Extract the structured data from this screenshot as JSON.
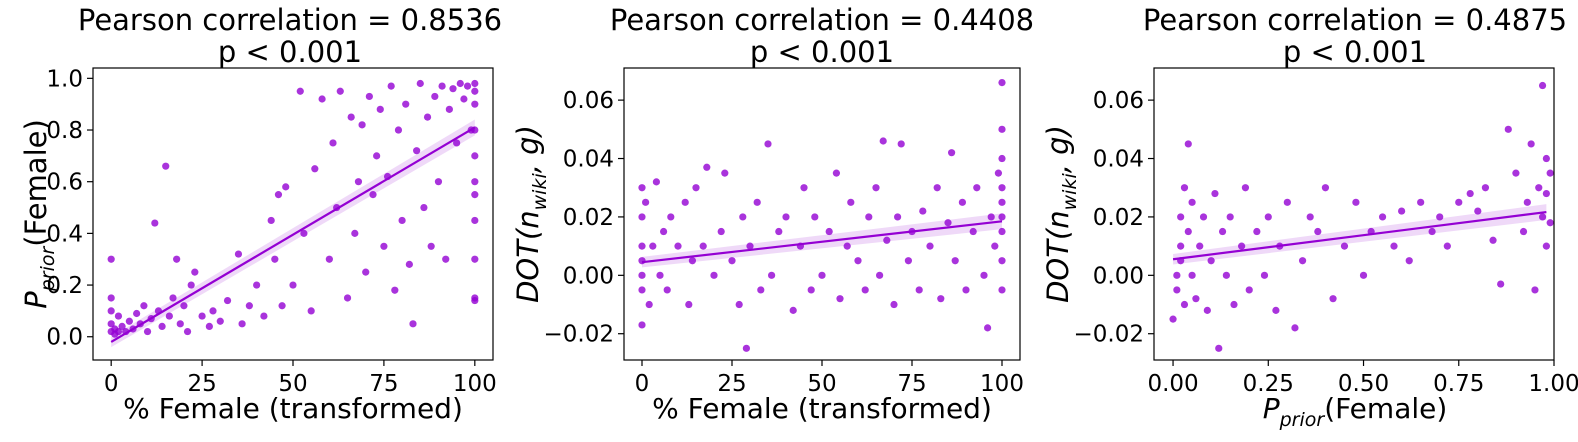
{
  "accent_color": "#9400D3",
  "chart_data": [
    {
      "type": "scatter",
      "title": "Pearson correlation = 0.8536",
      "subtitle": "p < 0.001",
      "xlabel": "% Female (transformed)",
      "ylabel_main": "P",
      "ylabel_sub": "prior",
      "ylabel_rest": "(Female)",
      "xlim": [
        -5,
        105
      ],
      "ylim": [
        -0.09,
        1.04
      ],
      "xticks": [
        0,
        25,
        50,
        75,
        100
      ],
      "xtick_labels": [
        "0",
        "25",
        "50",
        "75",
        "100"
      ],
      "yticks": [
        0.0,
        0.2,
        0.4,
        0.6,
        0.8,
        1.0
      ],
      "ytick_labels": [
        "0.0",
        "0.2",
        "0.4",
        "0.6",
        "0.8",
        "1.0"
      ],
      "regression": {
        "slope": 0.0083,
        "intercept": -0.02,
        "x_range": [
          0,
          100
        ]
      },
      "points": [
        [
          0,
          0.02
        ],
        [
          0,
          0.05
        ],
        [
          0,
          0.1
        ],
        [
          0,
          0.15
        ],
        [
          0,
          0.3
        ],
        [
          1,
          0.01
        ],
        [
          1,
          0.03
        ],
        [
          2,
          0.02
        ],
        [
          2,
          0.08
        ],
        [
          3,
          0.04
        ],
        [
          4,
          0.02
        ],
        [
          5,
          0.06
        ],
        [
          6,
          0.03
        ],
        [
          7,
          0.09
        ],
        [
          8,
          0.05
        ],
        [
          9,
          0.12
        ],
        [
          10,
          0.02
        ],
        [
          11,
          0.07
        ],
        [
          12,
          0.44
        ],
        [
          13,
          0.1
        ],
        [
          14,
          0.04
        ],
        [
          15,
          0.66
        ],
        [
          16,
          0.08
        ],
        [
          17,
          0.15
        ],
        [
          18,
          0.3
        ],
        [
          19,
          0.05
        ],
        [
          20,
          0.12
        ],
        [
          21,
          0.02
        ],
        [
          22,
          0.2
        ],
        [
          23,
          0.25
        ],
        [
          25,
          0.08
        ],
        [
          27,
          0.04
        ],
        [
          28,
          0.1
        ],
        [
          30,
          0.06
        ],
        [
          32,
          0.14
        ],
        [
          35,
          0.32
        ],
        [
          36,
          0.05
        ],
        [
          38,
          0.12
        ],
        [
          40,
          0.2
        ],
        [
          42,
          0.08
        ],
        [
          44,
          0.45
        ],
        [
          45,
          0.3
        ],
        [
          46,
          0.55
        ],
        [
          47,
          0.12
        ],
        [
          48,
          0.58
        ],
        [
          50,
          0.2
        ],
        [
          52,
          0.95
        ],
        [
          53,
          0.4
        ],
        [
          55,
          0.1
        ],
        [
          56,
          0.65
        ],
        [
          58,
          0.92
        ],
        [
          60,
          0.3
        ],
        [
          61,
          0.75
        ],
        [
          62,
          0.5
        ],
        [
          63,
          0.95
        ],
        [
          65,
          0.15
        ],
        [
          66,
          0.85
        ],
        [
          67,
          0.4
        ],
        [
          68,
          0.6
        ],
        [
          69,
          0.82
        ],
        [
          70,
          0.25
        ],
        [
          71,
          0.93
        ],
        [
          72,
          0.55
        ],
        [
          73,
          0.7
        ],
        [
          74,
          0.88
        ],
        [
          75,
          0.35
        ],
        [
          76,
          0.62
        ],
        [
          77,
          0.97
        ],
        [
          78,
          0.18
        ],
        [
          79,
          0.8
        ],
        [
          80,
          0.45
        ],
        [
          81,
          0.9
        ],
        [
          82,
          0.28
        ],
        [
          83,
          0.05
        ],
        [
          84,
          0.72
        ],
        [
          85,
          0.98
        ],
        [
          86,
          0.5
        ],
        [
          87,
          0.85
        ],
        [
          88,
          0.35
        ],
        [
          89,
          0.93
        ],
        [
          90,
          0.6
        ],
        [
          91,
          0.97
        ],
        [
          92,
          0.3
        ],
        [
          93,
          0.88
        ],
        [
          94,
          0.96
        ],
        [
          95,
          0.75
        ],
        [
          96,
          0.98
        ],
        [
          97,
          0.92
        ],
        [
          98,
          0.97
        ],
        [
          99,
          0.8
        ],
        [
          100,
          0.15
        ],
        [
          100,
          0.14
        ],
        [
          100,
          0.3
        ],
        [
          100,
          0.45
        ],
        [
          100,
          0.6
        ],
        [
          100,
          0.7
        ],
        [
          100,
          0.8
        ],
        [
          100,
          0.9
        ],
        [
          100,
          0.95
        ],
        [
          100,
          0.98
        ],
        [
          100,
          0.55
        ]
      ]
    },
    {
      "type": "scatter",
      "title": "Pearson correlation = 0.4408",
      "subtitle": "p < 0.001",
      "xlabel": "% Female (transformed)",
      "ylabel_main": "DOT(n",
      "ylabel_sub": "wiki",
      "ylabel_rest": ", g)",
      "xlim": [
        -5,
        105
      ],
      "ylim": [
        -0.029,
        0.071
      ],
      "xticks": [
        0,
        25,
        50,
        75,
        100
      ],
      "xtick_labels": [
        "0",
        "25",
        "50",
        "75",
        "100"
      ],
      "yticks": [
        -0.02,
        0.0,
        0.02,
        0.04,
        0.06
      ],
      "ytick_labels": [
        "−0.02",
        "0.00",
        "0.02",
        "0.04",
        "0.06"
      ],
      "regression": {
        "slope": 0.00014,
        "intercept": 0.0045,
        "x_range": [
          0,
          100
        ]
      },
      "points": [
        [
          0,
          -0.017
        ],
        [
          0,
          -0.005
        ],
        [
          0,
          0.0
        ],
        [
          0,
          0.005
        ],
        [
          0,
          0.01
        ],
        [
          0,
          0.02
        ],
        [
          0,
          0.03
        ],
        [
          1,
          0.025
        ],
        [
          2,
          -0.01
        ],
        [
          3,
          0.01
        ],
        [
          4,
          0.032
        ],
        [
          5,
          0.0
        ],
        [
          6,
          0.015
        ],
        [
          7,
          -0.005
        ],
        [
          8,
          0.02
        ],
        [
          10,
          0.01
        ],
        [
          12,
          0.025
        ],
        [
          13,
          -0.01
        ],
        [
          14,
          0.005
        ],
        [
          15,
          0.03
        ],
        [
          17,
          0.01
        ],
        [
          18,
          0.037
        ],
        [
          20,
          0.0
        ],
        [
          22,
          0.015
        ],
        [
          23,
          0.035
        ],
        [
          25,
          0.005
        ],
        [
          27,
          -0.01
        ],
        [
          28,
          0.02
        ],
        [
          29,
          -0.025
        ],
        [
          30,
          0.01
        ],
        [
          32,
          0.025
        ],
        [
          33,
          -0.005
        ],
        [
          35,
          0.045
        ],
        [
          36,
          0.0
        ],
        [
          38,
          0.015
        ],
        [
          40,
          0.02
        ],
        [
          42,
          -0.012
        ],
        [
          44,
          0.01
        ],
        [
          45,
          0.03
        ],
        [
          47,
          -0.005
        ],
        [
          48,
          0.02
        ],
        [
          50,
          0.0
        ],
        [
          52,
          0.015
        ],
        [
          54,
          0.035
        ],
        [
          55,
          -0.008
        ],
        [
          57,
          0.01
        ],
        [
          58,
          0.025
        ],
        [
          60,
          0.005
        ],
        [
          62,
          -0.005
        ],
        [
          63,
          0.02
        ],
        [
          65,
          0.03
        ],
        [
          66,
          0.0
        ],
        [
          67,
          0.046
        ],
        [
          68,
          0.012
        ],
        [
          70,
          -0.01
        ],
        [
          71,
          0.02
        ],
        [
          72,
          0.045
        ],
        [
          74,
          0.005
        ],
        [
          75,
          0.015
        ],
        [
          77,
          -0.005
        ],
        [
          78,
          0.022
        ],
        [
          80,
          0.01
        ],
        [
          82,
          0.03
        ],
        [
          83,
          -0.008
        ],
        [
          85,
          0.018
        ],
        [
          86,
          0.042
        ],
        [
          87,
          0.005
        ],
        [
          89,
          0.025
        ],
        [
          90,
          -0.005
        ],
        [
          92,
          0.015
        ],
        [
          93,
          0.03
        ],
        [
          95,
          0.0
        ],
        [
          96,
          -0.018
        ],
        [
          97,
          0.02
        ],
        [
          98,
          0.01
        ],
        [
          99,
          0.035
        ],
        [
          100,
          0.066
        ],
        [
          100,
          0.05
        ],
        [
          100,
          0.04
        ],
        [
          100,
          0.02
        ],
        [
          100,
          0.005
        ],
        [
          100,
          -0.005
        ],
        [
          100,
          0.015
        ],
        [
          100,
          0.03
        ],
        [
          100,
          0.025
        ]
      ]
    },
    {
      "type": "scatter",
      "title": "Pearson correlation = 0.4875",
      "subtitle": "p < 0.001",
      "xlabel_main": "P",
      "xlabel_sub": "prior",
      "xlabel_rest": "(Female)",
      "ylabel_main": "DOT(n",
      "ylabel_sub": "wiki",
      "ylabel_rest": ", g)",
      "xlim": [
        -0.05,
        1.0
      ],
      "ylim": [
        -0.029,
        0.071
      ],
      "xticks": [
        0.0,
        0.25,
        0.5,
        0.75,
        1.0
      ],
      "xtick_labels": [
        "0.00",
        "0.25",
        "0.50",
        "0.75",
        "1.00"
      ],
      "yticks": [
        -0.02,
        0.0,
        0.02,
        0.04,
        0.06
      ],
      "ytick_labels": [
        "−0.02",
        "0.00",
        "0.02",
        "0.04",
        "0.06"
      ],
      "regression": {
        "slope": 0.0165,
        "intercept": 0.0055,
        "x_range": [
          0.0,
          0.98
        ]
      },
      "points": [
        [
          0.0,
          -0.015
        ],
        [
          0.01,
          -0.005
        ],
        [
          0.01,
          0.0
        ],
        [
          0.02,
          0.005
        ],
        [
          0.02,
          0.01
        ],
        [
          0.02,
          0.02
        ],
        [
          0.03,
          0.03
        ],
        [
          0.03,
          -0.01
        ],
        [
          0.04,
          0.045
        ],
        [
          0.04,
          0.015
        ],
        [
          0.05,
          0.0
        ],
        [
          0.05,
          0.025
        ],
        [
          0.06,
          -0.008
        ],
        [
          0.07,
          0.01
        ],
        [
          0.08,
          0.02
        ],
        [
          0.09,
          -0.012
        ],
        [
          0.1,
          0.005
        ],
        [
          0.11,
          0.028
        ],
        [
          0.12,
          -0.025
        ],
        [
          0.13,
          0.015
        ],
        [
          0.14,
          0.0
        ],
        [
          0.15,
          0.02
        ],
        [
          0.16,
          -0.01
        ],
        [
          0.18,
          0.01
        ],
        [
          0.19,
          0.03
        ],
        [
          0.2,
          -0.005
        ],
        [
          0.22,
          0.015
        ],
        [
          0.24,
          0.0
        ],
        [
          0.25,
          0.02
        ],
        [
          0.27,
          -0.012
        ],
        [
          0.28,
          0.01
        ],
        [
          0.3,
          0.025
        ],
        [
          0.32,
          -0.018
        ],
        [
          0.34,
          0.005
        ],
        [
          0.36,
          0.02
        ],
        [
          0.38,
          0.015
        ],
        [
          0.4,
          0.03
        ],
        [
          0.42,
          -0.008
        ],
        [
          0.45,
          0.01
        ],
        [
          0.48,
          0.025
        ],
        [
          0.5,
          0.0
        ],
        [
          0.52,
          0.015
        ],
        [
          0.55,
          0.02
        ],
        [
          0.58,
          0.01
        ],
        [
          0.6,
          0.022
        ],
        [
          0.62,
          0.005
        ],
        [
          0.65,
          0.025
        ],
        [
          0.68,
          0.015
        ],
        [
          0.7,
          0.02
        ],
        [
          0.72,
          0.01
        ],
        [
          0.75,
          0.025
        ],
        [
          0.78,
          0.028
        ],
        [
          0.8,
          0.022
        ],
        [
          0.82,
          0.03
        ],
        [
          0.84,
          0.012
        ],
        [
          0.86,
          -0.003
        ],
        [
          0.88,
          0.05
        ],
        [
          0.9,
          0.035
        ],
        [
          0.92,
          0.015
        ],
        [
          0.93,
          0.025
        ],
        [
          0.94,
          0.045
        ],
        [
          0.95,
          -0.005
        ],
        [
          0.96,
          0.03
        ],
        [
          0.97,
          0.02
        ],
        [
          0.97,
          0.065
        ],
        [
          0.98,
          0.04
        ],
        [
          0.98,
          0.01
        ],
        [
          0.98,
          0.028
        ],
        [
          0.99,
          0.018
        ],
        [
          0.99,
          0.035
        ]
      ]
    }
  ]
}
